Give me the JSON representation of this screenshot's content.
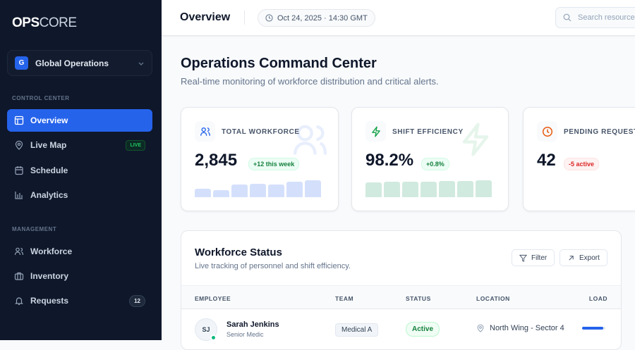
{
  "sidebar": {
    "logo_bold": "OPS",
    "logo_light": "CORE",
    "org": {
      "initial": "G",
      "name": "Global Operations"
    },
    "sections": [
      {
        "title": "CONTROL CENTER",
        "items": [
          {
            "label": "Overview",
            "icon": "layout-icon",
            "active": true
          },
          {
            "label": "Live Map",
            "icon": "map-pin-icon",
            "badge": "LIVE"
          },
          {
            "label": "Schedule",
            "icon": "calendar-icon"
          },
          {
            "label": "Analytics",
            "icon": "bar-chart-icon"
          }
        ]
      },
      {
        "title": "MANAGEMENT",
        "items": [
          {
            "label": "Workforce",
            "icon": "users-icon"
          },
          {
            "label": "Inventory",
            "icon": "briefcase-icon"
          },
          {
            "label": "Requests",
            "icon": "bell-icon",
            "badge": "12"
          }
        ]
      }
    ]
  },
  "header": {
    "title": "Overview",
    "datetime": "Oct 24, 2025 · 14:30 GMT",
    "search_placeholder": "Search resources..."
  },
  "page": {
    "title": "Operations Command Center",
    "subtitle": "Real-time monitoring of workforce distribution and critical alerts."
  },
  "stats": [
    {
      "label": "TOTAL WORKFORCE",
      "value": "2,845",
      "change": "+12 this week",
      "trend": "up",
      "icon": "users-icon",
      "color": "#2563eb",
      "spark": [
        0.5,
        0.42,
        0.72,
        0.78,
        0.72,
        0.88,
        0.95
      ],
      "spark_color": "#d4e0fb"
    },
    {
      "label": "SHIFT EFFICIENCY",
      "value": "98.2%",
      "change": "+0.8%",
      "trend": "up",
      "icon": "zap-icon",
      "color": "#16a34a",
      "spark": [
        0.84,
        0.87,
        0.9,
        0.9,
        0.94,
        0.94,
        0.98
      ],
      "spark_color": "#d1eadf"
    },
    {
      "label": "PENDING REQUESTS",
      "value": "42",
      "change": "-5 active",
      "trend": "down",
      "icon": "clock-icon",
      "color": "#ea580c"
    }
  ],
  "table": {
    "title": "Workforce Status",
    "subtitle": "Live tracking of personnel and shift efficiency.",
    "filter_label": "Filter",
    "export_label": "Export",
    "columns": [
      "EMPLOYEE",
      "TEAM",
      "STATUS",
      "LOCATION",
      "LOAD"
    ],
    "rows": [
      {
        "initials": "SJ",
        "name": "Sarah Jenkins",
        "role": "Senior Medic",
        "team": "Medical A",
        "status": "Active",
        "location": "North Wing - Sector 4",
        "load": 0.9,
        "online": true
      }
    ]
  }
}
